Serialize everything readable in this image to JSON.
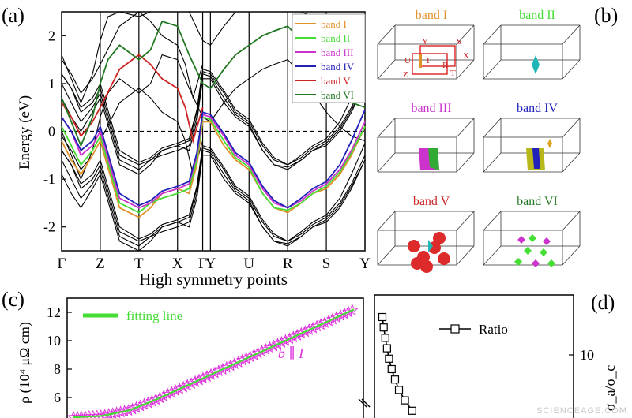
{
  "panel_labels": {
    "a": "(a)",
    "b": "(b)",
    "c": "(c)",
    "d": "(d)"
  },
  "watermark": "SCIENCEAGE.COM",
  "band_colors": {
    "band I": "#e0922a",
    "band II": "#44dd33",
    "band III": "#cc33cc",
    "band IV": "#2222bb",
    "band V": "#cc2222",
    "band VI": "#227722"
  },
  "chart_data": [
    {
      "type": "line",
      "panel": "a",
      "xlabel": "High symmetry points",
      "ylabel": "Energy (eV)",
      "ylim": [
        -2.5,
        2.5
      ],
      "yticks": [
        -2,
        -1,
        0,
        1,
        2
      ],
      "kpoints": [
        "Γ",
        "Z",
        "T",
        "X",
        "Γ",
        "Y",
        "U",
        "R",
        "S",
        "Y"
      ],
      "kpos": [
        0,
        1,
        2,
        3,
        3.65,
        3.85,
        4.85,
        5.85,
        6.85,
        7.85
      ],
      "fermi_level": 0,
      "legend_position": "top-right",
      "legend": [
        "band I",
        "band II",
        "band III",
        "band IV",
        "band V",
        "band VI"
      ],
      "series": [
        {
          "name": "band I",
          "color": "#e0922a",
          "x": [
            0,
            0.25,
            0.5,
            0.8,
            1,
            1.5,
            2,
            2.3,
            2.6,
            3,
            3.3,
            3.5,
            3.65,
            3.85,
            4.2,
            4.5,
            4.85,
            5.2,
            5.5,
            5.85,
            6.2,
            6.5,
            6.85,
            7.2,
            7.5,
            7.85
          ],
          "y": [
            -0.2,
            -0.6,
            -0.9,
            -0.5,
            -0.2,
            -1.6,
            -1.8,
            -1.6,
            -1.3,
            -1.2,
            -1.3,
            -0.7,
            0.2,
            0.2,
            -0.3,
            -0.6,
            -0.8,
            -1.3,
            -1.6,
            -1.7,
            -1.5,
            -1.3,
            -1.2,
            -0.9,
            -0.5,
            0.1
          ]
        },
        {
          "name": "band II",
          "color": "#44dd33",
          "x": [
            0,
            0.25,
            0.5,
            0.8,
            1,
            1.5,
            2,
            2.3,
            2.6,
            3,
            3.3,
            3.5,
            3.65,
            3.85,
            4.2,
            4.5,
            4.85,
            5.2,
            5.5,
            5.85,
            6.2,
            6.5,
            6.85,
            7.2,
            7.5,
            7.85
          ],
          "y": [
            0.1,
            -0.3,
            -0.7,
            -0.4,
            -0.1,
            -1.5,
            -1.7,
            -1.5,
            -1.4,
            -1.3,
            -1.2,
            -0.6,
            0.3,
            0.25,
            -0.2,
            -0.55,
            -0.75,
            -1.3,
            -1.6,
            -1.65,
            -1.5,
            -1.3,
            -1.15,
            -0.85,
            -0.45,
            0.1
          ]
        },
        {
          "name": "band III",
          "color": "#cc33cc",
          "x": [
            0,
            0.25,
            0.5,
            0.8,
            1,
            1.5,
            2,
            2.3,
            2.6,
            3,
            3.3,
            3.5,
            3.65,
            3.85,
            4.2,
            4.5,
            4.85,
            5.2,
            5.5,
            5.85,
            6.2,
            6.5,
            6.85,
            7.2,
            7.5,
            7.85
          ],
          "y": [
            0.3,
            0.0,
            -0.5,
            -0.3,
            0.0,
            -1.4,
            -1.6,
            -1.5,
            -1.3,
            -1.2,
            -1.1,
            -0.5,
            0.35,
            0.3,
            -0.1,
            -0.5,
            -0.7,
            -1.2,
            -1.5,
            -1.6,
            -1.45,
            -1.25,
            -1.1,
            -0.8,
            -0.4,
            0.2
          ]
        },
        {
          "name": "band IV",
          "color": "#2222bb",
          "x": [
            0,
            0.25,
            0.5,
            0.8,
            1,
            1.5,
            2,
            2.3,
            2.6,
            3,
            3.3,
            3.5,
            3.65,
            3.85,
            4.2,
            4.5,
            4.85,
            5.2,
            5.5,
            5.85,
            6.2,
            6.5,
            6.85,
            7.2,
            7.5,
            7.85
          ],
          "y": [
            0.3,
            0.0,
            -0.4,
            -0.2,
            0.1,
            -1.3,
            -1.55,
            -1.45,
            -1.25,
            -1.15,
            -1.05,
            -0.45,
            0.4,
            0.35,
            -0.05,
            -0.45,
            -0.65,
            -1.15,
            -1.45,
            -1.6,
            -1.4,
            -1.2,
            -1.05,
            -0.7,
            -0.2,
            0.45
          ]
        },
        {
          "name": "band V",
          "color": "#cc2222",
          "x": [
            0,
            0.25,
            0.5,
            0.8,
            1,
            1.5,
            2,
            2.3,
            2.6,
            3,
            3.2,
            3.4,
            3.65
          ],
          "y": [
            0.6,
            0.3,
            -0.1,
            0.2,
            0.5,
            1.3,
            1.6,
            1.4,
            1.1,
            0.9,
            0.5,
            -0.2,
            0.5
          ]
        },
        {
          "name": "band VI",
          "color": "#227722",
          "x": [
            0,
            0.25,
            0.5,
            0.8,
            1,
            1.2,
            1.5,
            2,
            2.3,
            2.6,
            3,
            3.3,
            3.65,
            3.85,
            4.2,
            4.5,
            4.85,
            5.2,
            5.5,
            5.85,
            6.2,
            6.5,
            6.85,
            7.2,
            7.5,
            7.85
          ],
          "y": [
            0.7,
            0.2,
            -0.3,
            0.3,
            1.0,
            1.5,
            1.8,
            1.5,
            1.7,
            2.3,
            2.2,
            1.6,
            1.0,
            0.9,
            1.3,
            1.6,
            1.8,
            2.0,
            2.1,
            2.2,
            1.9,
            1.5,
            1.1,
            0.8,
            0.6,
            0.5
          ]
        }
      ]
    },
    {
      "type": "line",
      "panel": "c",
      "ylabel": "ρ (10⁴ μΩ cm)",
      "yticks": [
        6,
        8,
        10,
        12
      ],
      "ylim": [
        4,
        13
      ],
      "annotation": "b ∥ I",
      "legend": [
        "fitting line"
      ],
      "series": [
        {
          "name": "fitting line",
          "color": "#44dd33",
          "x": [
            0,
            0.1,
            0.2,
            0.3,
            0.4,
            0.5,
            0.6,
            0.7,
            0.8,
            0.9,
            1.0
          ],
          "y": [
            4.6,
            4.7,
            5.1,
            5.9,
            6.8,
            7.7,
            8.6,
            9.5,
            10.4,
            11.3,
            12.2
          ]
        },
        {
          "name": "b ∥ I",
          "color": "#dd33dd",
          "marker": "star",
          "x": [
            0,
            0.1,
            0.2,
            0.3,
            0.4,
            0.5,
            0.6,
            0.7,
            0.8,
            0.9,
            1.0
          ],
          "y": [
            4.6,
            4.7,
            5.1,
            5.9,
            6.8,
            7.7,
            8.6,
            9.5,
            10.4,
            11.3,
            12.2
          ]
        }
      ]
    },
    {
      "type": "line",
      "panel": "d",
      "ylabel": "σ_a/σ_c",
      "yticks": [
        10
      ],
      "legend": [
        "Ratio"
      ],
      "series": [
        {
          "name": "Ratio",
          "color": "#000000",
          "marker": "square-open",
          "x": [
            0.1,
            0.14,
            0.18,
            0.22,
            0.26,
            0.3,
            0.34,
            0.38,
            0.42,
            0.46
          ],
          "y": [
            0,
            0.04,
            0.09,
            0.14,
            0.2,
            0.28,
            0.38,
            0.5,
            0.68,
            0.9
          ]
        }
      ]
    }
  ],
  "panel_b": {
    "cells": [
      {
        "label": "band I",
        "color": "#e0922a",
        "bz_labels": [
          "Y",
          "S",
          "X",
          "U",
          "Γ",
          "R",
          "Z",
          "T"
        ]
      },
      {
        "label": "band II",
        "color": "#44dd33"
      },
      {
        "label": "band III",
        "color": "#cc33cc"
      },
      {
        "label": "band IV",
        "color": "#2222bb"
      },
      {
        "label": "band V",
        "color": "#cc2222"
      },
      {
        "label": "band VI",
        "color": "#227722"
      }
    ]
  }
}
